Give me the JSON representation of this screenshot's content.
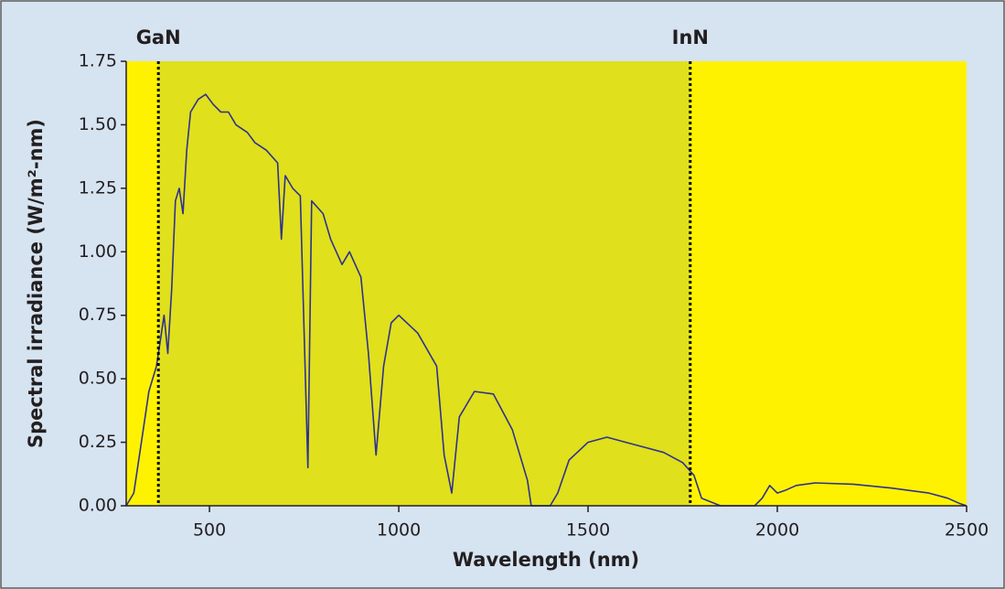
{
  "chart_data": {
    "type": "line",
    "xlabel": "Wavelength (nm)",
    "ylabel": "Spectral irradiance (W/m²-nm)",
    "x": [
      280,
      300,
      320,
      340,
      360,
      370,
      380,
      390,
      400,
      410,
      420,
      430,
      440,
      450,
      470,
      490,
      510,
      530,
      550,
      570,
      600,
      620,
      650,
      680,
      690,
      700,
      720,
      740,
      760,
      770,
      800,
      820,
      850,
      870,
      900,
      920,
      940,
      960,
      980,
      1000,
      1050,
      1100,
      1120,
      1140,
      1160,
      1200,
      1250,
      1300,
      1340,
      1350,
      1400,
      1420,
      1450,
      1500,
      1550,
      1600,
      1650,
      1700,
      1750,
      1780,
      1800,
      1850,
      1940,
      1960,
      1980,
      2000,
      2020,
      2050,
      2100,
      2200,
      2300,
      2400,
      2450,
      2480,
      2500
    ],
    "values": [
      0,
      0.05,
      0.25,
      0.45,
      0.55,
      0.65,
      0.75,
      0.6,
      0.85,
      1.2,
      1.25,
      1.15,
      1.4,
      1.55,
      1.6,
      1.62,
      1.58,
      1.55,
      1.55,
      1.5,
      1.47,
      1.43,
      1.4,
      1.35,
      1.05,
      1.3,
      1.25,
      1.22,
      0.15,
      1.2,
      1.15,
      1.05,
      0.95,
      1.0,
      0.9,
      0.6,
      0.2,
      0.55,
      0.72,
      0.75,
      0.68,
      0.55,
      0.2,
      0.05,
      0.35,
      0.45,
      0.44,
      0.3,
      0.1,
      0,
      0,
      0.05,
      0.18,
      0.25,
      0.27,
      0.25,
      0.23,
      0.21,
      0.17,
      0.12,
      0.03,
      0,
      0,
      0.03,
      0.08,
      0.05,
      0.06,
      0.08,
      0.09,
      0.085,
      0.07,
      0.05,
      0.03,
      0.01,
      0
    ],
    "color": "#2e3192",
    "xlim": [
      280,
      2500
    ],
    "ylim": [
      0,
      1.75
    ],
    "xticks": [
      500,
      1000,
      1500,
      2000,
      2500
    ],
    "yticks": [
      {
        "value": 0,
        "label": "0.00"
      },
      {
        "value": 0.25,
        "label": "0.25"
      },
      {
        "value": 0.5,
        "label": "0.50"
      },
      {
        "value": 0.75,
        "label": "0.75"
      },
      {
        "value": 1,
        "label": "1.00"
      },
      {
        "value": 1.25,
        "label": "1.25"
      },
      {
        "value": 1.5,
        "label": "1.50"
      },
      {
        "value": 1.75,
        "label": "1.75"
      }
    ],
    "markers": [
      {
        "label": "GaN",
        "x": 365
      },
      {
        "label": "InN",
        "x": 1770
      }
    ],
    "band_color": "#e0e01c",
    "background_color": "#fff200"
  }
}
